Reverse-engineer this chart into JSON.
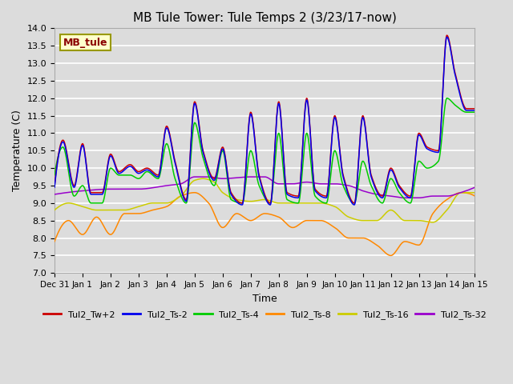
{
  "title": "MB Tule Tower: Tule Temps 2 (3/23/17-now)",
  "xlabel": "Time",
  "ylabel": "Temperature (C)",
  "ylim": [
    7.0,
    14.0
  ],
  "yticks": [
    7.0,
    7.5,
    8.0,
    8.5,
    9.0,
    9.5,
    10.0,
    10.5,
    11.0,
    11.5,
    12.0,
    12.5,
    13.0,
    13.5,
    14.0
  ],
  "background_color": "#dcdcdc",
  "series_colors": {
    "Tul2_Tw+2": "#cc0000",
    "Tul2_Ts-2": "#0000ee",
    "Tul2_Ts-4": "#00cc00",
    "Tul2_Ts-8": "#ff8800",
    "Tul2_Ts-16": "#cccc00",
    "Tul2_Ts-32": "#9900cc"
  },
  "legend_label": "MB_tule",
  "xtick_labels": [
    "Dec 31",
    "Jan 1",
    "Jan 2",
    "Jan 3",
    "Jan 4",
    "Jan 5",
    "Jan 6",
    "Jan 7",
    "Jan 8",
    "Jan 9",
    "Jan 10",
    "Jan 11",
    "Jan 12",
    "Jan 13",
    "Jan 14",
    "Jan 15"
  ]
}
